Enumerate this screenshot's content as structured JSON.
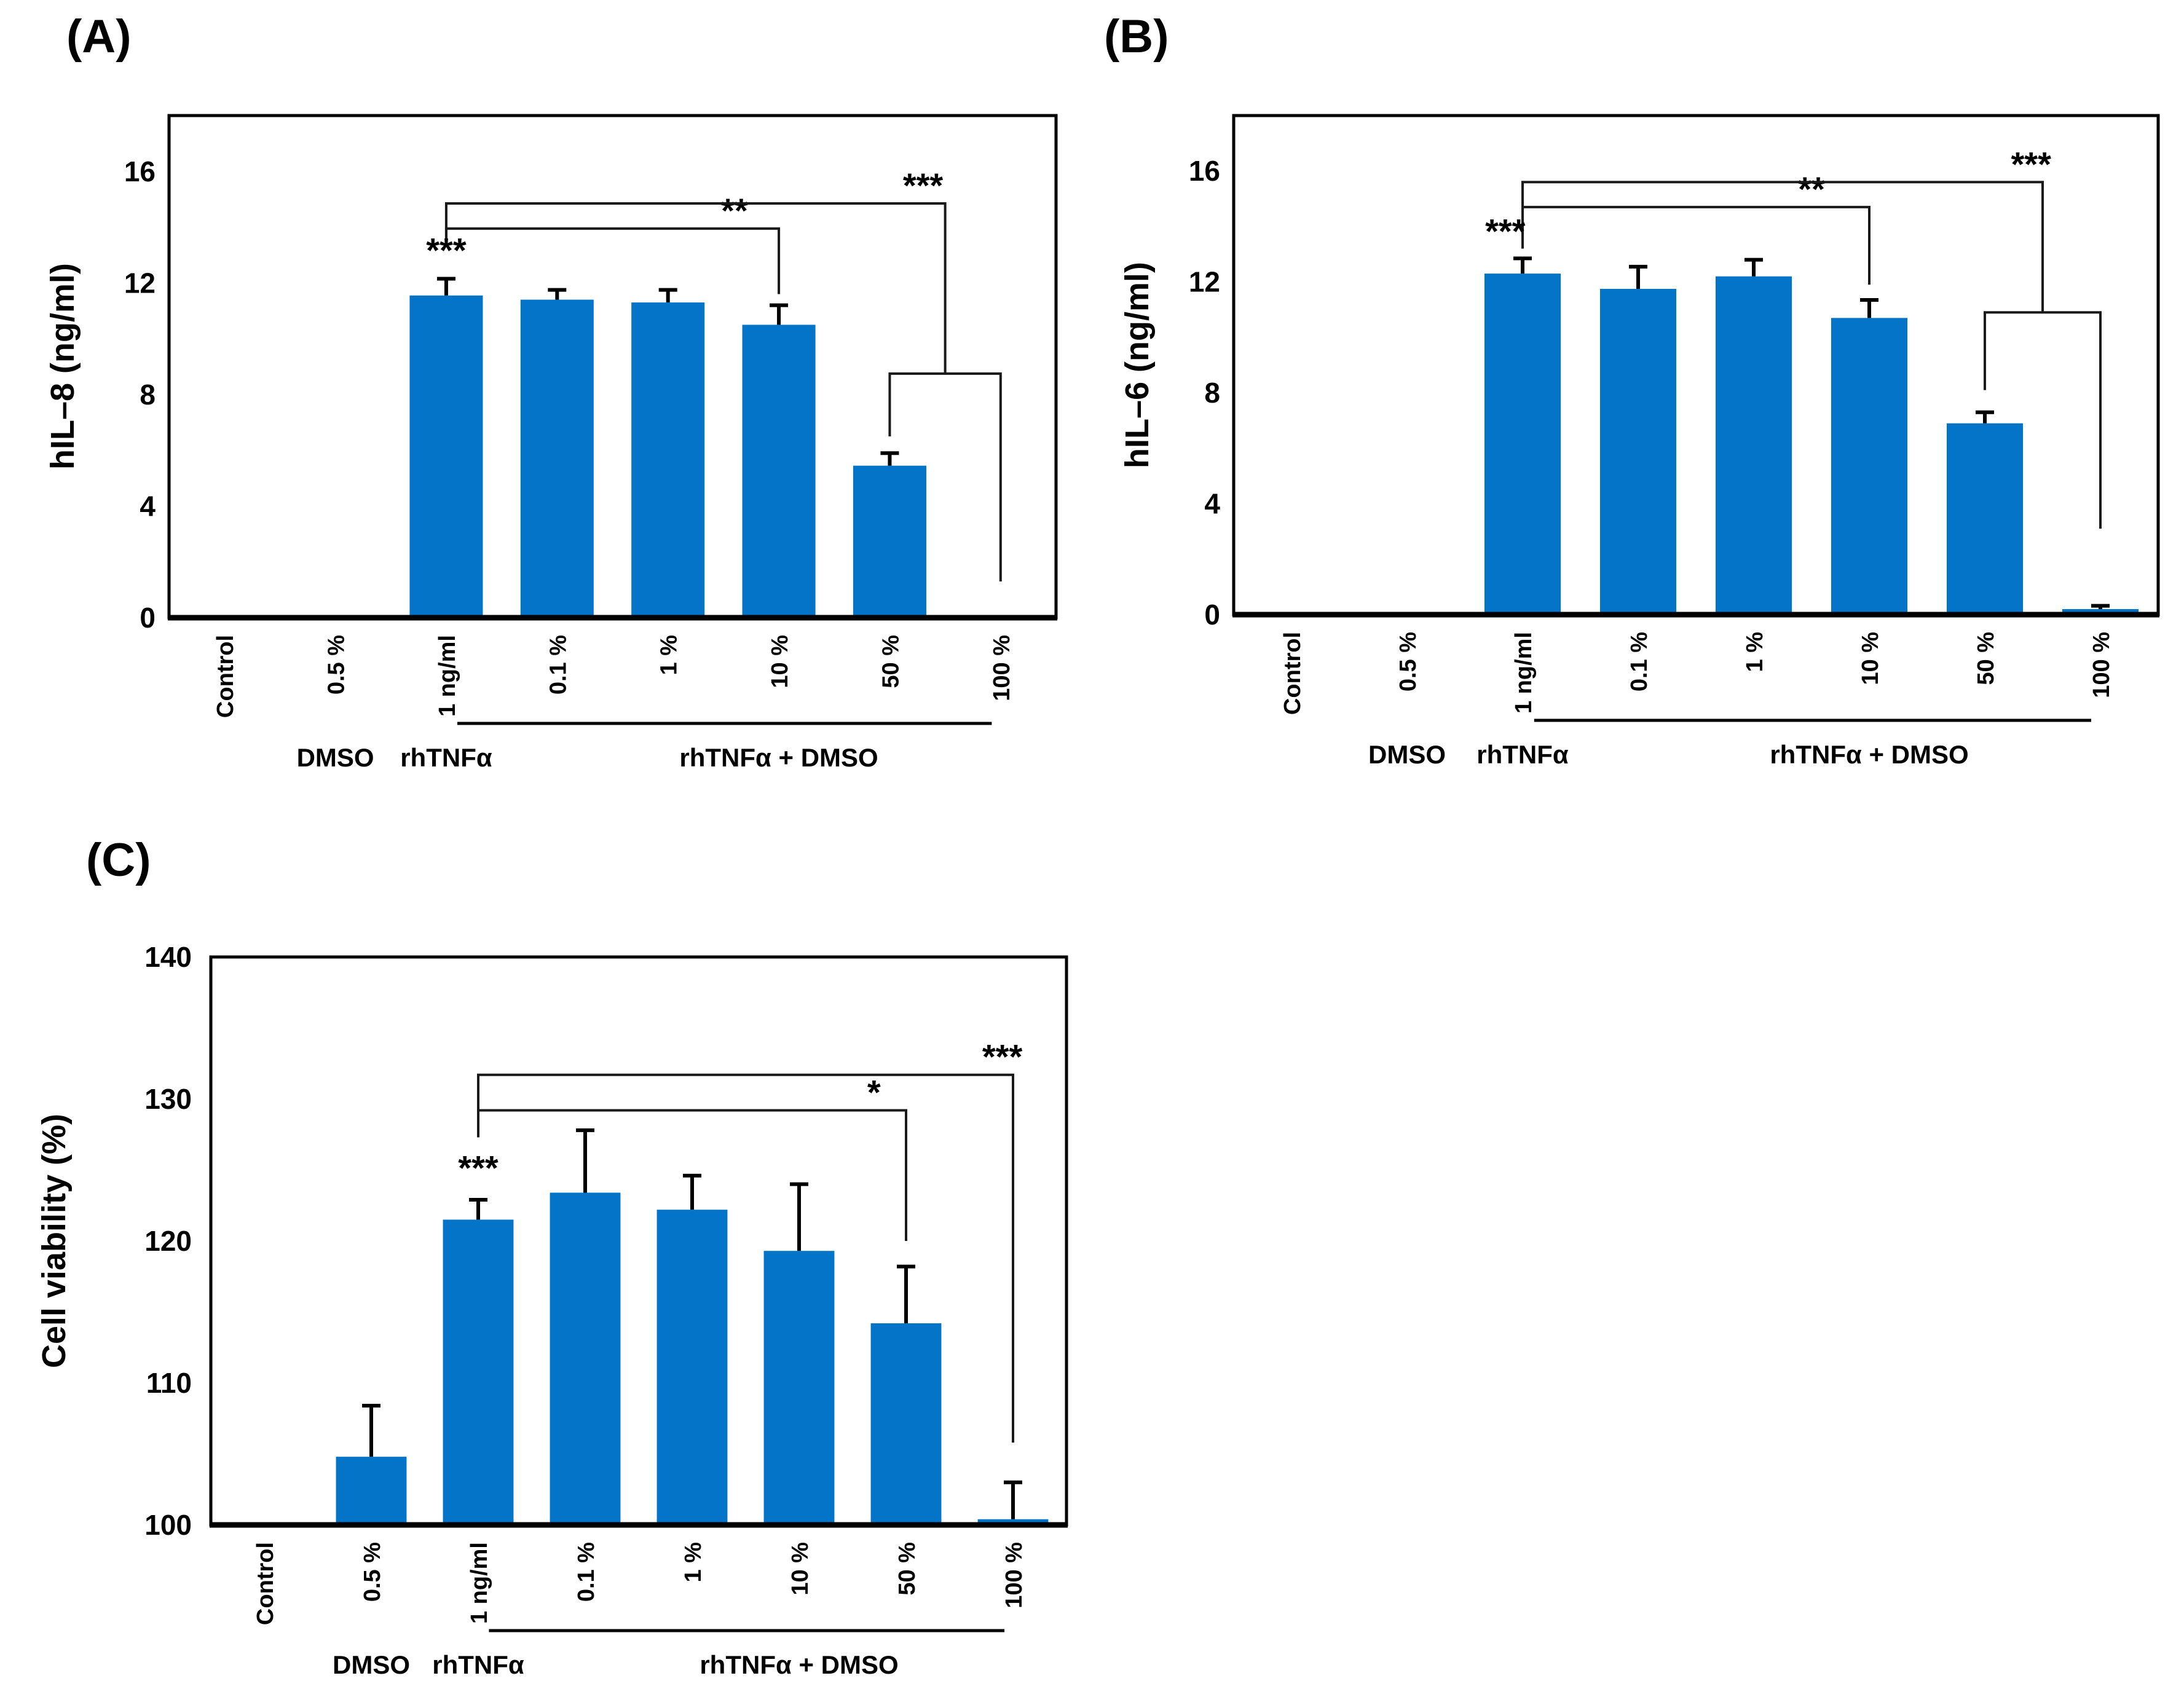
{
  "figure_colors": {
    "bar_fill": "#0474c8",
    "axis_line": "#000000",
    "error_bar": "#000000",
    "bracket_line": "#1a1a1a"
  },
  "chart_data": [
    {
      "type": "bar",
      "panel": "(A)",
      "ylabel": "hIL–8 (ng/ml)",
      "categories": [
        "Control",
        "0.5 %",
        "1 ng/ml",
        "0.1 %",
        "1 %",
        "10 %",
        "50 %",
        "100 %"
      ],
      "values": [
        0,
        0.06,
        11.55,
        11.4,
        11.3,
        10.5,
        5.45,
        0.06
      ],
      "errors_up": [
        0,
        0,
        0.6,
        0.35,
        0.45,
        0.7,
        0.45,
        0
      ],
      "ylim": [
        0,
        18
      ],
      "yticks": [
        0,
        4,
        8,
        12,
        16
      ],
      "grid": "off",
      "group_labels": [
        {
          "text": "DMSO",
          "x": 1
        },
        {
          "text": "rhTNFα",
          "x": 2
        },
        {
          "text": "rhTNFα + DMSO",
          "x": 5.0,
          "line_x1": 2.6,
          "line_x2": 7.42
        }
      ],
      "bar_star_annotations": [
        {
          "label": "***",
          "x": 2,
          "y": 12.75
        }
      ],
      "significance_brackets": [
        {
          "label": "**",
          "x1": 2,
          "x2": 5,
          "level": 13.95,
          "left_drop_to": 13.35,
          "right_drop_to": 11.6,
          "label_x": 4.6
        },
        {
          "label": "***",
          "x1": 2,
          "x2": 6.5,
          "level": 14.85,
          "left_drop_to": 13.35,
          "right_drop_to": 8.75,
          "label_x": 6.3
        },
        {
          "label": "",
          "x1": 6,
          "x2": 7,
          "level": 8.75,
          "left_drop_to": 6.5,
          "right_drop_to": 1.3,
          "label_x": 0
        }
      ]
    },
    {
      "type": "bar",
      "panel": "(B)",
      "ylabel": "hIL–6 (ng/ml)",
      "categories": [
        "Control",
        "0.5 %",
        "1 ng/ml",
        "0.1 %",
        "1 %",
        "10 %",
        "50 %",
        "100 %"
      ],
      "values": [
        0,
        0.06,
        12.3,
        11.75,
        12.2,
        10.7,
        6.9,
        0.2
      ],
      "errors_up": [
        0,
        0,
        0.55,
        0.8,
        0.6,
        0.65,
        0.4,
        0.12
      ],
      "ylim": [
        0,
        18
      ],
      "yticks": [
        0,
        4,
        8,
        12,
        16
      ],
      "grid": "off",
      "group_labels": [
        {
          "text": "DMSO",
          "x": 1
        },
        {
          "text": "rhTNFα",
          "x": 2
        },
        {
          "text": "rhTNFα + DMSO",
          "x": 5.0,
          "line_x1": 2.6,
          "line_x2": 7.42
        }
      ],
      "bar_star_annotations": [
        {
          "label": "***",
          "x": 1.85,
          "y": 13.4
        }
      ],
      "significance_brackets": [
        {
          "label": "**",
          "x1": 2,
          "x2": 5,
          "level": 14.7,
          "left_drop_to": 13.2,
          "right_drop_to": 11.9,
          "label_x": 4.5
        },
        {
          "label": "***",
          "x1": 2,
          "x2": 6.5,
          "level": 15.6,
          "left_drop_to": 13.2,
          "right_drop_to": 10.9,
          "label_x": 6.4
        },
        {
          "label": "",
          "x1": 6,
          "x2": 7,
          "level": 10.9,
          "left_drop_to": 8.1,
          "right_drop_to": 3.1,
          "label_x": 0
        }
      ]
    },
    {
      "type": "bar",
      "panel": "(C)",
      "ylabel": "Cell viability (%)",
      "categories": [
        "Control",
        "0.5 %",
        "1 ng/ml",
        "0.1 %",
        "1 %",
        "10 %",
        "50 %",
        "100 %"
      ],
      "values": [
        100,
        104.8,
        121.5,
        123.4,
        122.2,
        119.3,
        114.2,
        100.4
      ],
      "errors_up": [
        0,
        3.6,
        1.4,
        4.4,
        2.4,
        4.7,
        4.0,
        2.6
      ],
      "ylim": [
        100,
        140
      ],
      "yticks": [
        100,
        110,
        120,
        130,
        140
      ],
      "grid": "off",
      "group_labels": [
        {
          "text": "DMSO",
          "x": 1
        },
        {
          "text": "rhTNFα",
          "x": 2
        },
        {
          "text": "rhTNFα + DMSO",
          "x": 5.0,
          "line_x1": 2.6,
          "line_x2": 7.42
        }
      ],
      "bar_star_annotations": [
        {
          "label": "***",
          "x": 2,
          "y": 124.3
        }
      ],
      "significance_brackets": [
        {
          "label": "*",
          "x1": 2,
          "x2": 6,
          "level": 129.2,
          "left_drop_to": 127.3,
          "right_drop_to": 120.0,
          "label_x": 5.7
        },
        {
          "label": "***",
          "x1": 2,
          "x2": 7,
          "level": 131.7,
          "left_drop_to": 127.3,
          "right_drop_to": 105.8,
          "label_x": 6.9
        }
      ]
    }
  ]
}
